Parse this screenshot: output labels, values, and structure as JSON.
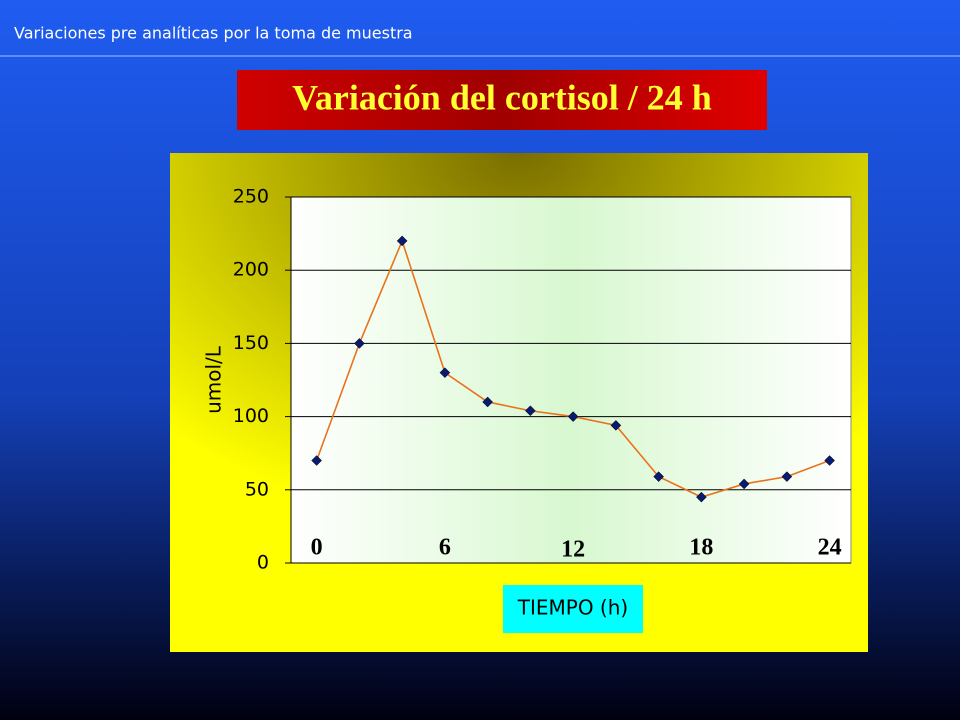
{
  "header": "Variaciones pre analíticas por la toma de muestra",
  "chart_data": {
    "type": "line",
    "title": "Variación del cortisol  / 24 h",
    "y_label": "umol/L",
    "x_label": "TIEMPO (h)",
    "x": [
      0,
      2,
      4,
      6,
      8,
      10,
      12,
      14,
      16,
      18,
      20,
      22,
      24
    ],
    "series": [
      {
        "name": "cortisol",
        "color": "#e8731c",
        "marker_color": "#0a1a6e",
        "values": [
          70,
          150,
          220,
          130,
          110,
          104,
          100,
          94,
          59,
          45,
          54,
          59,
          70
        ]
      }
    ],
    "xlim": [
      -1.2,
      25
    ],
    "xticks": [
      0,
      6,
      12,
      18,
      24
    ],
    "ylim": [
      0,
      250
    ],
    "yticks": [
      0,
      50,
      100,
      150,
      200,
      250
    ],
    "grid": true
  }
}
